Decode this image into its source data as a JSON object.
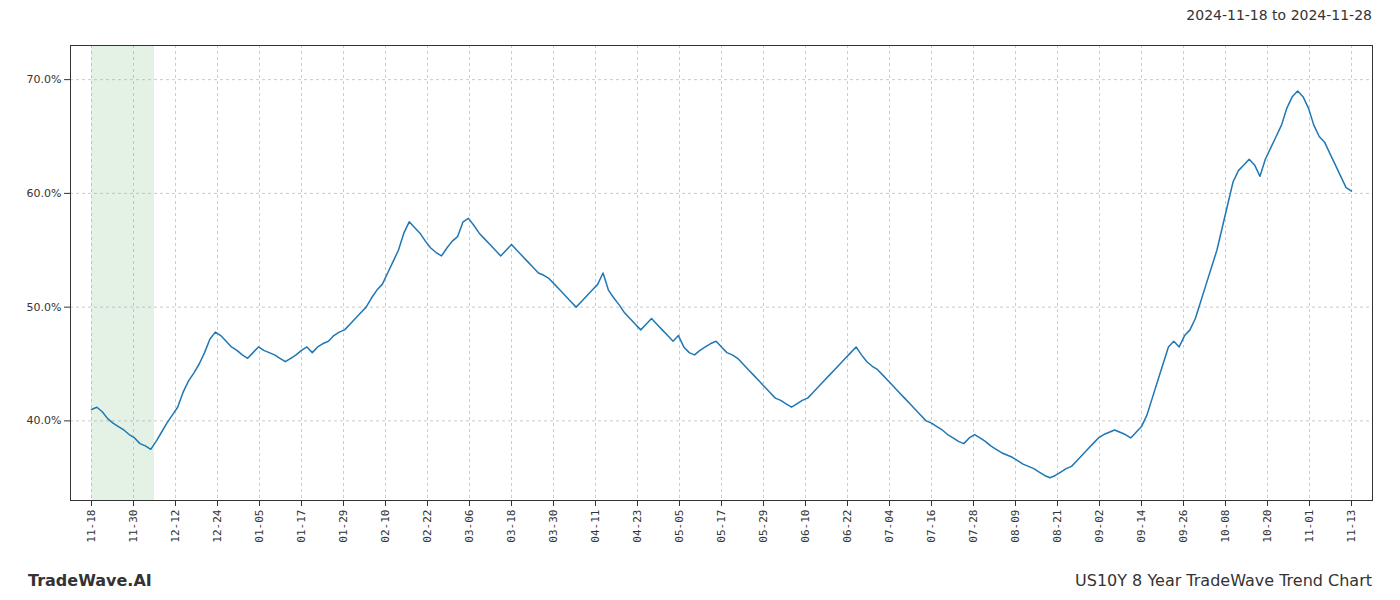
{
  "chart_data": {
    "type": "line",
    "title": "2024-11-18 to 2024-11-28",
    "annotations": [
      "TradeWave.AI",
      "US10Y 8 Year TradeWave Trend Chart"
    ],
    "color": "#1f77b4",
    "grid": true,
    "highlight": {
      "x_start": 0,
      "x_end": 11.7,
      "color": "#c8e6c9"
    },
    "xlim": [
      -3.9,
      237.9
    ],
    "xticks": [
      {
        "value": 0,
        "label": "11-18"
      },
      {
        "value": 7.8,
        "label": "11-30"
      },
      {
        "value": 15.6,
        "label": "12-12"
      },
      {
        "value": 23.4,
        "label": "12-24"
      },
      {
        "value": 31.2,
        "label": "01-05"
      },
      {
        "value": 39,
        "label": "01-17"
      },
      {
        "value": 46.8,
        "label": "01-29"
      },
      {
        "value": 54.6,
        "label": "02-10"
      },
      {
        "value": 62.4,
        "label": "02-22"
      },
      {
        "value": 70.2,
        "label": "03-06"
      },
      {
        "value": 78,
        "label": "03-18"
      },
      {
        "value": 85.8,
        "label": "03-30"
      },
      {
        "value": 93.6,
        "label": "04-11"
      },
      {
        "value": 101.4,
        "label": "04-23"
      },
      {
        "value": 109.2,
        "label": "05-05"
      },
      {
        "value": 117,
        "label": "05-17"
      },
      {
        "value": 124.8,
        "label": "05-29"
      },
      {
        "value": 132.6,
        "label": "06-10"
      },
      {
        "value": 140.4,
        "label": "06-22"
      },
      {
        "value": 148.2,
        "label": "07-04"
      },
      {
        "value": 156,
        "label": "07-16"
      },
      {
        "value": 163.8,
        "label": "07-28"
      },
      {
        "value": 171.6,
        "label": "08-09"
      },
      {
        "value": 179.4,
        "label": "08-21"
      },
      {
        "value": 187.2,
        "label": "09-02"
      },
      {
        "value": 195,
        "label": "09-14"
      },
      {
        "value": 202.8,
        "label": "09-26"
      },
      {
        "value": 210.6,
        "label": "10-08"
      },
      {
        "value": 218.4,
        "label": "10-20"
      },
      {
        "value": 226.2,
        "label": "11-01"
      },
      {
        "value": 234,
        "label": "11-13"
      }
    ],
    "ylim": [
      33,
      73
    ],
    "yticks": [
      {
        "value": 40,
        "label": "40.0%"
      },
      {
        "value": 50,
        "label": "50.0%"
      },
      {
        "value": 60,
        "label": "60.0%"
      },
      {
        "value": 70,
        "label": "70.0%"
      }
    ],
    "x": [
      0,
      1,
      2,
      3,
      4,
      5,
      6,
      7,
      8,
      9,
      10,
      11,
      12,
      13,
      14,
      15,
      16,
      17,
      18,
      19,
      20,
      21,
      22,
      23,
      24,
      25,
      26,
      27,
      28,
      29,
      30,
      31,
      32,
      33,
      34,
      35,
      36,
      37,
      38,
      39,
      40,
      41,
      42,
      43,
      44,
      45,
      46,
      47,
      48,
      49,
      50,
      51,
      52,
      53,
      54,
      55,
      56,
      57,
      58,
      59,
      60,
      61,
      62,
      63,
      64,
      65,
      66,
      67,
      68,
      69,
      70,
      71,
      72,
      73,
      74,
      75,
      76,
      77,
      78,
      79,
      80,
      81,
      82,
      83,
      84,
      85,
      86,
      87,
      88,
      89,
      90,
      91,
      92,
      93,
      94,
      95,
      96,
      97,
      98,
      99,
      100,
      101,
      102,
      103,
      104,
      105,
      106,
      107,
      108,
      109,
      110,
      111,
      112,
      113,
      114,
      115,
      116,
      117,
      118,
      119,
      120,
      121,
      122,
      123,
      124,
      125,
      126,
      127,
      128,
      129,
      130,
      131,
      132,
      133,
      134,
      135,
      136,
      137,
      138,
      139,
      140,
      141,
      142,
      143,
      144,
      145,
      146,
      147,
      148,
      149,
      150,
      151,
      152,
      153,
      154,
      155,
      156,
      157,
      158,
      159,
      160,
      161,
      162,
      163,
      164,
      165,
      166,
      167,
      168,
      169,
      170,
      171,
      172,
      173,
      174,
      175,
      176,
      177,
      178,
      179,
      180,
      181,
      182,
      183,
      184,
      185,
      186,
      187,
      188,
      189,
      190,
      191,
      192,
      193,
      194,
      195,
      196,
      197,
      198,
      199,
      200,
      201,
      202,
      203,
      204,
      205,
      206,
      207,
      208,
      209,
      210,
      211,
      212,
      213,
      214,
      215,
      216,
      217,
      218,
      219,
      220,
      221,
      222,
      223,
      224,
      225,
      226,
      227,
      228,
      229,
      230,
      231,
      232,
      233,
      234
    ],
    "values": [
      41.0,
      41.2,
      40.8,
      40.2,
      39.8,
      39.5,
      39.2,
      38.8,
      38.5,
      38.0,
      37.8,
      37.5,
      38.2,
      39.0,
      39.8,
      40.5,
      41.2,
      42.5,
      43.5,
      44.2,
      45.0,
      46.0,
      47.2,
      47.8,
      47.5,
      47.0,
      46.5,
      46.2,
      45.8,
      45.5,
      46.0,
      46.5,
      46.2,
      46.0,
      45.8,
      45.5,
      45.2,
      45.5,
      45.8,
      46.2,
      46.5,
      46.0,
      46.5,
      46.8,
      47.0,
      47.5,
      47.8,
      48.0,
      48.5,
      49.0,
      49.5,
      50.0,
      50.8,
      51.5,
      52.0,
      53.0,
      54.0,
      55.0,
      56.5,
      57.5,
      57.0,
      56.5,
      55.8,
      55.2,
      54.8,
      54.5,
      55.2,
      55.8,
      56.2,
      57.5,
      57.8,
      57.2,
      56.5,
      56.0,
      55.5,
      55.0,
      54.5,
      55.0,
      55.5,
      55.0,
      54.5,
      54.0,
      53.5,
      53.0,
      52.8,
      52.5,
      52.0,
      51.5,
      51.0,
      50.5,
      50.0,
      50.5,
      51.0,
      51.5,
      52.0,
      53.0,
      51.5,
      50.8,
      50.2,
      49.5,
      49.0,
      48.5,
      48.0,
      48.5,
      49.0,
      48.5,
      48.0,
      47.5,
      47.0,
      47.5,
      46.5,
      46.0,
      45.8,
      46.2,
      46.5,
      46.8,
      47.0,
      46.5,
      46.0,
      45.8,
      45.5,
      45.0,
      44.5,
      44.0,
      43.5,
      43.0,
      42.5,
      42.0,
      41.8,
      41.5,
      41.2,
      41.5,
      41.8,
      42.0,
      42.5,
      43.0,
      43.5,
      44.0,
      44.5,
      45.0,
      45.5,
      46.0,
      46.5,
      45.8,
      45.2,
      44.8,
      44.5,
      44.0,
      43.5,
      43.0,
      42.5,
      42.0,
      41.5,
      41.0,
      40.5,
      40.0,
      39.8,
      39.5,
      39.2,
      38.8,
      38.5,
      38.2,
      38.0,
      38.5,
      38.8,
      38.5,
      38.2,
      37.8,
      37.5,
      37.2,
      37.0,
      36.8,
      36.5,
      36.2,
      36.0,
      35.8,
      35.5,
      35.2,
      35.0,
      35.2,
      35.5,
      35.8,
      36.0,
      36.5,
      37.0,
      37.5,
      38.0,
      38.5,
      38.8,
      39.0,
      39.2,
      39.0,
      38.8,
      38.5,
      39.0,
      39.5,
      40.5,
      42.0,
      43.5,
      45.0,
      46.5,
      47.0,
      46.5,
      47.5,
      48.0,
      49.0,
      50.5,
      52.0,
      53.5,
      55.0,
      57.0,
      59.0,
      61.0,
      62.0,
      62.5,
      63.0,
      62.5,
      61.5,
      63.0,
      64.0,
      65.0,
      66.0,
      67.5,
      68.5,
      69.0,
      68.5,
      67.5,
      66.0,
      65.0,
      64.5,
      63.5,
      62.5,
      61.5,
      60.5,
      60.2
    ]
  }
}
